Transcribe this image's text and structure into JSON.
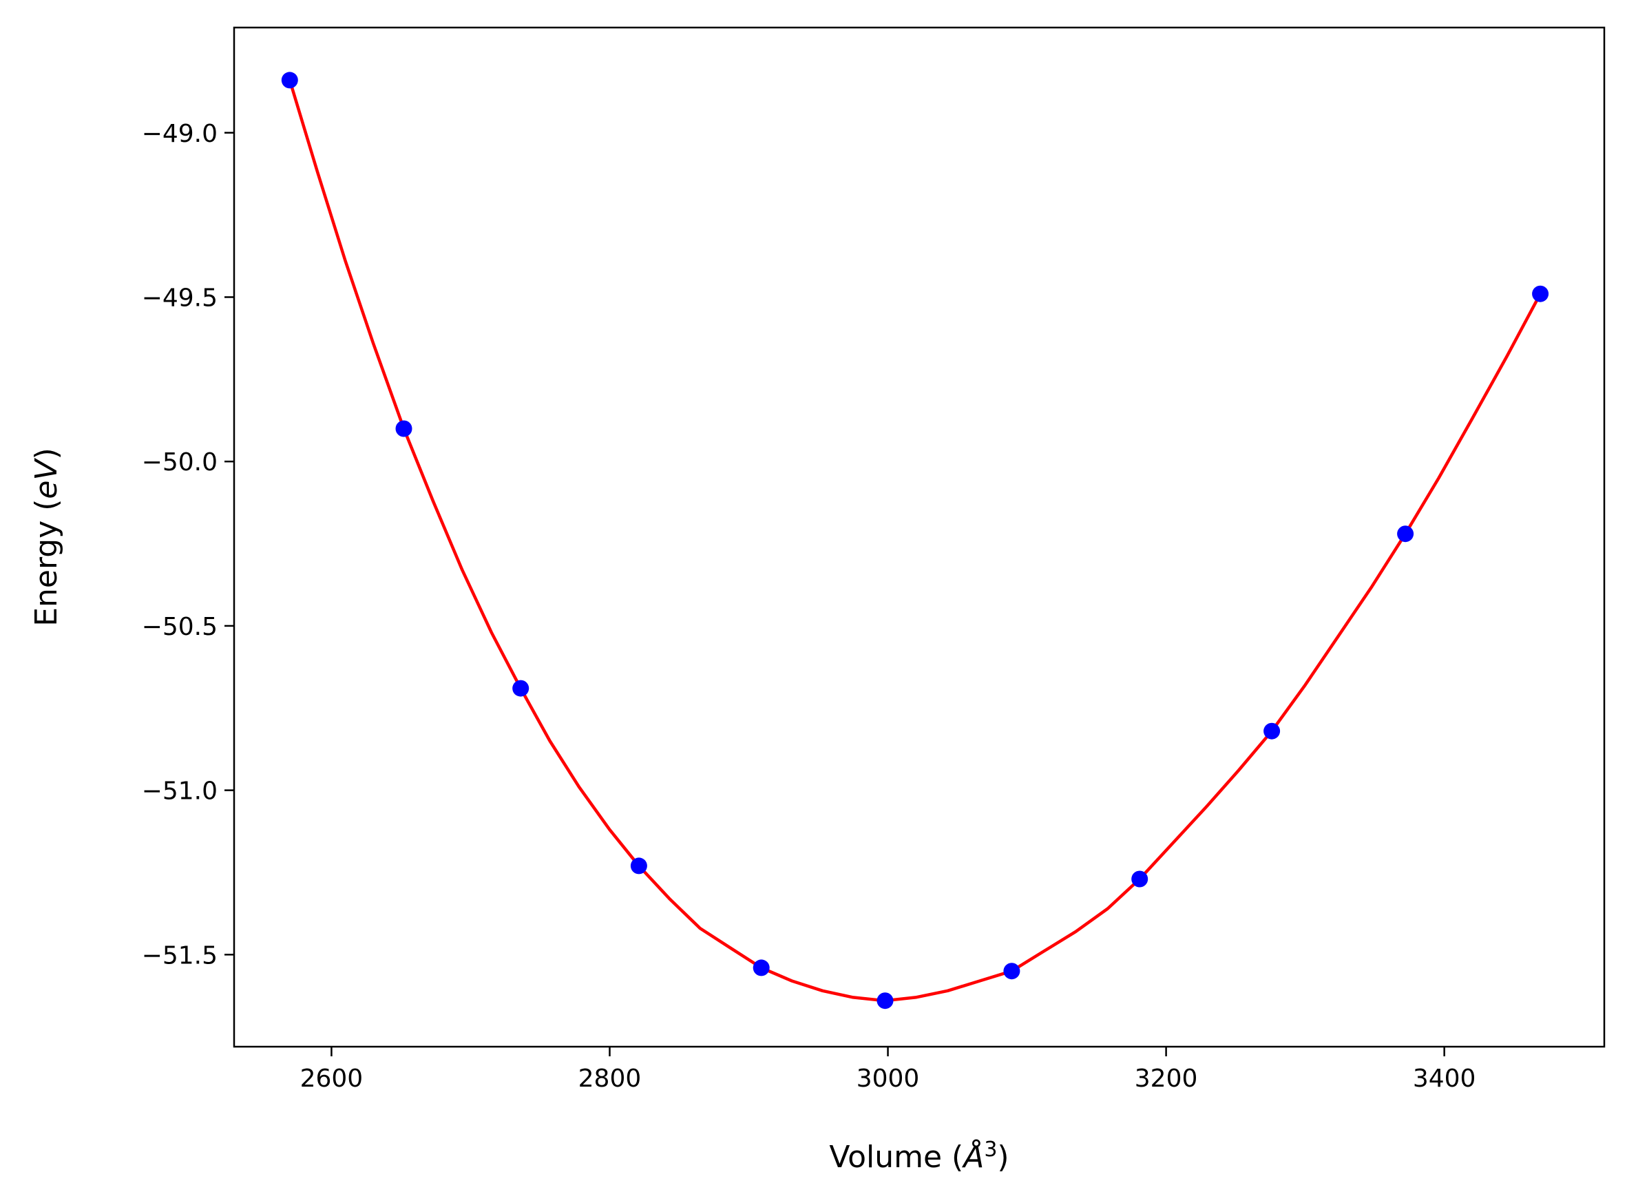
{
  "chart_data": {
    "type": "line",
    "title": "",
    "xlabel": {
      "prefix": "Volume (",
      "symbol": "Å",
      "sup": "3",
      "suffix": ")"
    },
    "ylabel": {
      "prefix": "Energy (",
      "symbol": "eV",
      "suffix": ")"
    },
    "xlim": [
      2530,
      3515
    ],
    "ylim": [
      -51.78,
      -48.68
    ],
    "x_ticks": [
      2600,
      2800,
      3000,
      3200,
      3400
    ],
    "x_tick_labels": [
      "2600",
      "2800",
      "3000",
      "3200",
      "3400"
    ],
    "y_ticks": [
      -49.0,
      -49.5,
      -50.0,
      -50.5,
      -51.0,
      -51.5
    ],
    "y_tick_labels": [
      "−49.0",
      "−49.5",
      "−50.0",
      "−50.5",
      "−51.0",
      "−51.5"
    ],
    "grid": false,
    "series": [
      {
        "style": "markers",
        "color": "#0000ff",
        "points": [
          [
            2570,
            -48.84
          ],
          [
            2652,
            -49.9
          ],
          [
            2736,
            -50.69
          ],
          [
            2821,
            -51.23
          ],
          [
            2909,
            -51.54
          ],
          [
            2998,
            -51.64
          ],
          [
            3089,
            -51.55
          ],
          [
            3181,
            -51.27
          ],
          [
            3276,
            -50.82
          ],
          [
            3372,
            -50.22
          ],
          [
            3469,
            -49.49
          ]
        ]
      },
      {
        "style": "fit-line",
        "color": "#ff0000",
        "points": [
          [
            2570,
            -48.84
          ],
          [
            2590,
            -49.12
          ],
          [
            2610,
            -49.39
          ],
          [
            2630,
            -49.64
          ],
          [
            2652,
            -49.9
          ],
          [
            2673,
            -50.12
          ],
          [
            2694,
            -50.33
          ],
          [
            2715,
            -50.52
          ],
          [
            2736,
            -50.69
          ],
          [
            2757,
            -50.85
          ],
          [
            2778,
            -50.99
          ],
          [
            2800,
            -51.12
          ],
          [
            2821,
            -51.23
          ],
          [
            2843,
            -51.33
          ],
          [
            2865,
            -51.42
          ],
          [
            2887,
            -51.48
          ],
          [
            2909,
            -51.54
          ],
          [
            2931,
            -51.58
          ],
          [
            2953,
            -51.61
          ],
          [
            2975,
            -51.63
          ],
          [
            2998,
            -51.64
          ],
          [
            3020,
            -51.63
          ],
          [
            3043,
            -51.61
          ],
          [
            3066,
            -51.58
          ],
          [
            3089,
            -51.55
          ],
          [
            3112,
            -51.49
          ],
          [
            3135,
            -51.43
          ],
          [
            3158,
            -51.36
          ],
          [
            3181,
            -51.27
          ],
          [
            3205,
            -51.16
          ],
          [
            3229,
            -51.05
          ],
          [
            3252,
            -50.94
          ],
          [
            3276,
            -50.82
          ],
          [
            3300,
            -50.68
          ],
          [
            3324,
            -50.53
          ],
          [
            3348,
            -50.38
          ],
          [
            3372,
            -50.22
          ],
          [
            3396,
            -50.05
          ],
          [
            3420,
            -49.87
          ],
          [
            3445,
            -49.68
          ],
          [
            3469,
            -49.49
          ]
        ]
      }
    ],
    "legend": null
  }
}
